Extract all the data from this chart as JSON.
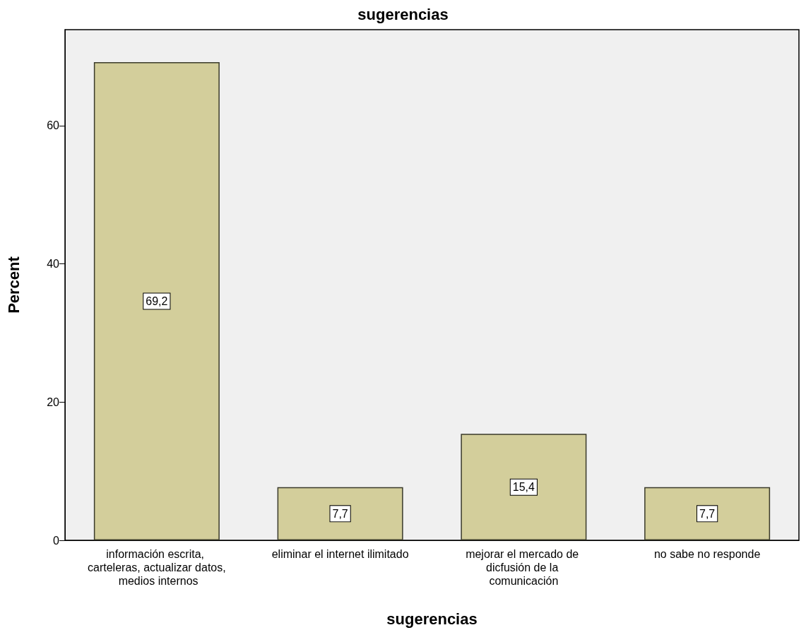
{
  "chart_data": {
    "type": "bar",
    "title": "sugerencias",
    "xlabel": "sugerencias",
    "ylabel": "Percent",
    "categories": [
      "información escrita, carteleras, actualizar datos, medios internos",
      "eliminar el internet ilimitado",
      "mejorar el mercado de dicfusión de la comunicación",
      "no sabe no responde"
    ],
    "values": [
      69.2,
      7.7,
      15.4,
      7.7
    ],
    "value_labels": [
      "69,2",
      "7,7",
      "15,4",
      "7,7"
    ],
    "color": "#d3ce9b",
    "ylim": [
      0,
      73.9
    ],
    "yticks": [
      0,
      20,
      40,
      60
    ],
    "grid": false
  }
}
